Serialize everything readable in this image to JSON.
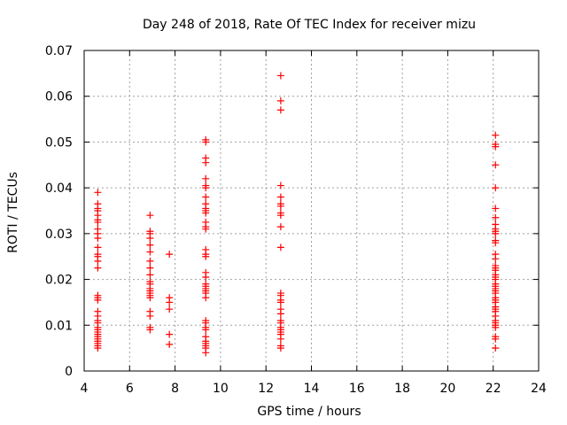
{
  "chart_data": {
    "type": "scatter",
    "title": "Day 248 of 2018, Rate Of TEC Index for receiver mizu",
    "xlabel": "GPS time / hours",
    "ylabel": "ROTI / TECUs",
    "xlim": [
      4,
      24
    ],
    "ylim": [
      0,
      0.07
    ],
    "x_ticks": [
      4,
      6,
      8,
      10,
      12,
      14,
      16,
      18,
      20,
      22,
      24
    ],
    "y_ticks": [
      0,
      0.01,
      0.02,
      0.03,
      0.04,
      0.05,
      0.06,
      0.07
    ],
    "x_tick_labels": [
      "4",
      "6",
      "8",
      "10",
      "12",
      "14",
      "16",
      "18",
      "20",
      "22",
      "24"
    ],
    "y_tick_labels": [
      "0",
      "0.01",
      "0.02",
      "0.03",
      "0.04",
      "0.05",
      "0.06",
      "0.07"
    ],
    "grid": true,
    "marker": "+",
    "color": "#ff0000",
    "series": [
      {
        "name": "ROTI",
        "points": [
          [
            4.6,
            0.039
          ],
          [
            4.6,
            0.0365
          ],
          [
            4.6,
            0.0355
          ],
          [
            4.6,
            0.035
          ],
          [
            4.6,
            0.034
          ],
          [
            4.6,
            0.033
          ],
          [
            4.6,
            0.0325
          ],
          [
            4.6,
            0.031
          ],
          [
            4.6,
            0.03
          ],
          [
            4.6,
            0.029
          ],
          [
            4.6,
            0.027
          ],
          [
            4.6,
            0.0255
          ],
          [
            4.6,
            0.025
          ],
          [
            4.6,
            0.024
          ],
          [
            4.6,
            0.0225
          ],
          [
            4.6,
            0.0165
          ],
          [
            4.6,
            0.016
          ],
          [
            4.6,
            0.0155
          ],
          [
            4.6,
            0.013
          ],
          [
            4.6,
            0.012
          ],
          [
            4.6,
            0.011
          ],
          [
            4.6,
            0.0105
          ],
          [
            4.6,
            0.0095
          ],
          [
            4.6,
            0.009
          ],
          [
            4.6,
            0.0085
          ],
          [
            4.6,
            0.008
          ],
          [
            4.6,
            0.0075
          ],
          [
            4.6,
            0.007
          ],
          [
            4.6,
            0.0065
          ],
          [
            4.6,
            0.006
          ],
          [
            4.6,
            0.0055
          ],
          [
            4.6,
            0.005
          ],
          [
            6.9,
            0.034
          ],
          [
            6.9,
            0.0305
          ],
          [
            6.9,
            0.03
          ],
          [
            6.9,
            0.029
          ],
          [
            6.9,
            0.0275
          ],
          [
            6.9,
            0.026
          ],
          [
            6.9,
            0.024
          ],
          [
            6.9,
            0.0225
          ],
          [
            6.9,
            0.021
          ],
          [
            6.9,
            0.0195
          ],
          [
            6.9,
            0.019
          ],
          [
            6.9,
            0.018
          ],
          [
            6.9,
            0.0175
          ],
          [
            6.9,
            0.017
          ],
          [
            6.9,
            0.0165
          ],
          [
            6.9,
            0.016
          ],
          [
            6.9,
            0.013
          ],
          [
            6.9,
            0.012
          ],
          [
            6.9,
            0.0095
          ],
          [
            6.9,
            0.009
          ],
          [
            7.75,
            0.0255
          ],
          [
            7.75,
            0.016
          ],
          [
            7.75,
            0.015
          ],
          [
            7.75,
            0.0135
          ],
          [
            7.75,
            0.008
          ],
          [
            7.75,
            0.0058
          ],
          [
            9.35,
            0.0505
          ],
          [
            9.35,
            0.05
          ],
          [
            9.35,
            0.0465
          ],
          [
            9.35,
            0.0455
          ],
          [
            9.35,
            0.042
          ],
          [
            9.35,
            0.0405
          ],
          [
            9.35,
            0.04
          ],
          [
            9.35,
            0.038
          ],
          [
            9.35,
            0.0365
          ],
          [
            9.35,
            0.0355
          ],
          [
            9.35,
            0.035
          ],
          [
            9.35,
            0.0345
          ],
          [
            9.35,
            0.0325
          ],
          [
            9.35,
            0.0315
          ],
          [
            9.35,
            0.031
          ],
          [
            9.35,
            0.0265
          ],
          [
            9.35,
            0.0255
          ],
          [
            9.35,
            0.025
          ],
          [
            9.35,
            0.0215
          ],
          [
            9.35,
            0.0205
          ],
          [
            9.35,
            0.019
          ],
          [
            9.35,
            0.0185
          ],
          [
            9.35,
            0.018
          ],
          [
            9.35,
            0.0175
          ],
          [
            9.35,
            0.017
          ],
          [
            9.35,
            0.016
          ],
          [
            9.35,
            0.011
          ],
          [
            9.35,
            0.0105
          ],
          [
            9.35,
            0.0095
          ],
          [
            9.35,
            0.009
          ],
          [
            9.35,
            0.0075
          ],
          [
            9.35,
            0.0065
          ],
          [
            9.35,
            0.006
          ],
          [
            9.35,
            0.0055
          ],
          [
            9.35,
            0.005
          ],
          [
            9.35,
            0.004
          ],
          [
            12.65,
            0.0645
          ],
          [
            12.65,
            0.059
          ],
          [
            12.65,
            0.057
          ],
          [
            12.65,
            0.0405
          ],
          [
            12.65,
            0.038
          ],
          [
            12.65,
            0.0365
          ],
          [
            12.65,
            0.036
          ],
          [
            12.65,
            0.0345
          ],
          [
            12.65,
            0.034
          ],
          [
            12.65,
            0.0315
          ],
          [
            12.65,
            0.027
          ],
          [
            12.65,
            0.017
          ],
          [
            12.65,
            0.0165
          ],
          [
            12.65,
            0.0155
          ],
          [
            12.65,
            0.015
          ],
          [
            12.65,
            0.0135
          ],
          [
            12.65,
            0.0125
          ],
          [
            12.65,
            0.011
          ],
          [
            12.65,
            0.0105
          ],
          [
            12.65,
            0.0095
          ],
          [
            12.65,
            0.009
          ],
          [
            12.65,
            0.0085
          ],
          [
            12.65,
            0.008
          ],
          [
            12.65,
            0.007
          ],
          [
            12.65,
            0.0055
          ],
          [
            12.65,
            0.005
          ],
          [
            22.1,
            0.0515
          ],
          [
            22.1,
            0.0495
          ],
          [
            22.1,
            0.049
          ],
          [
            22.1,
            0.045
          ],
          [
            22.1,
            0.04
          ],
          [
            22.1,
            0.0355
          ],
          [
            22.1,
            0.0335
          ],
          [
            22.1,
            0.032
          ],
          [
            22.1,
            0.031
          ],
          [
            22.1,
            0.0305
          ],
          [
            22.1,
            0.03
          ],
          [
            22.1,
            0.0285
          ],
          [
            22.1,
            0.028
          ],
          [
            22.1,
            0.0255
          ],
          [
            22.1,
            0.0245
          ],
          [
            22.1,
            0.023
          ],
          [
            22.1,
            0.0225
          ],
          [
            22.1,
            0.022
          ],
          [
            22.1,
            0.021
          ],
          [
            22.1,
            0.0205
          ],
          [
            22.1,
            0.02
          ],
          [
            22.1,
            0.019
          ],
          [
            22.1,
            0.0185
          ],
          [
            22.1,
            0.018
          ],
          [
            22.1,
            0.0175
          ],
          [
            22.1,
            0.017
          ],
          [
            22.1,
            0.016
          ],
          [
            22.1,
            0.0155
          ],
          [
            22.1,
            0.015
          ],
          [
            22.1,
            0.014
          ],
          [
            22.1,
            0.0135
          ],
          [
            22.1,
            0.013
          ],
          [
            22.1,
            0.012
          ],
          [
            22.1,
            0.011
          ],
          [
            22.1,
            0.0105
          ],
          [
            22.1,
            0.01
          ],
          [
            22.1,
            0.0095
          ],
          [
            22.1,
            0.0075
          ],
          [
            22.1,
            0.007
          ],
          [
            22.1,
            0.005
          ]
        ]
      }
    ]
  }
}
